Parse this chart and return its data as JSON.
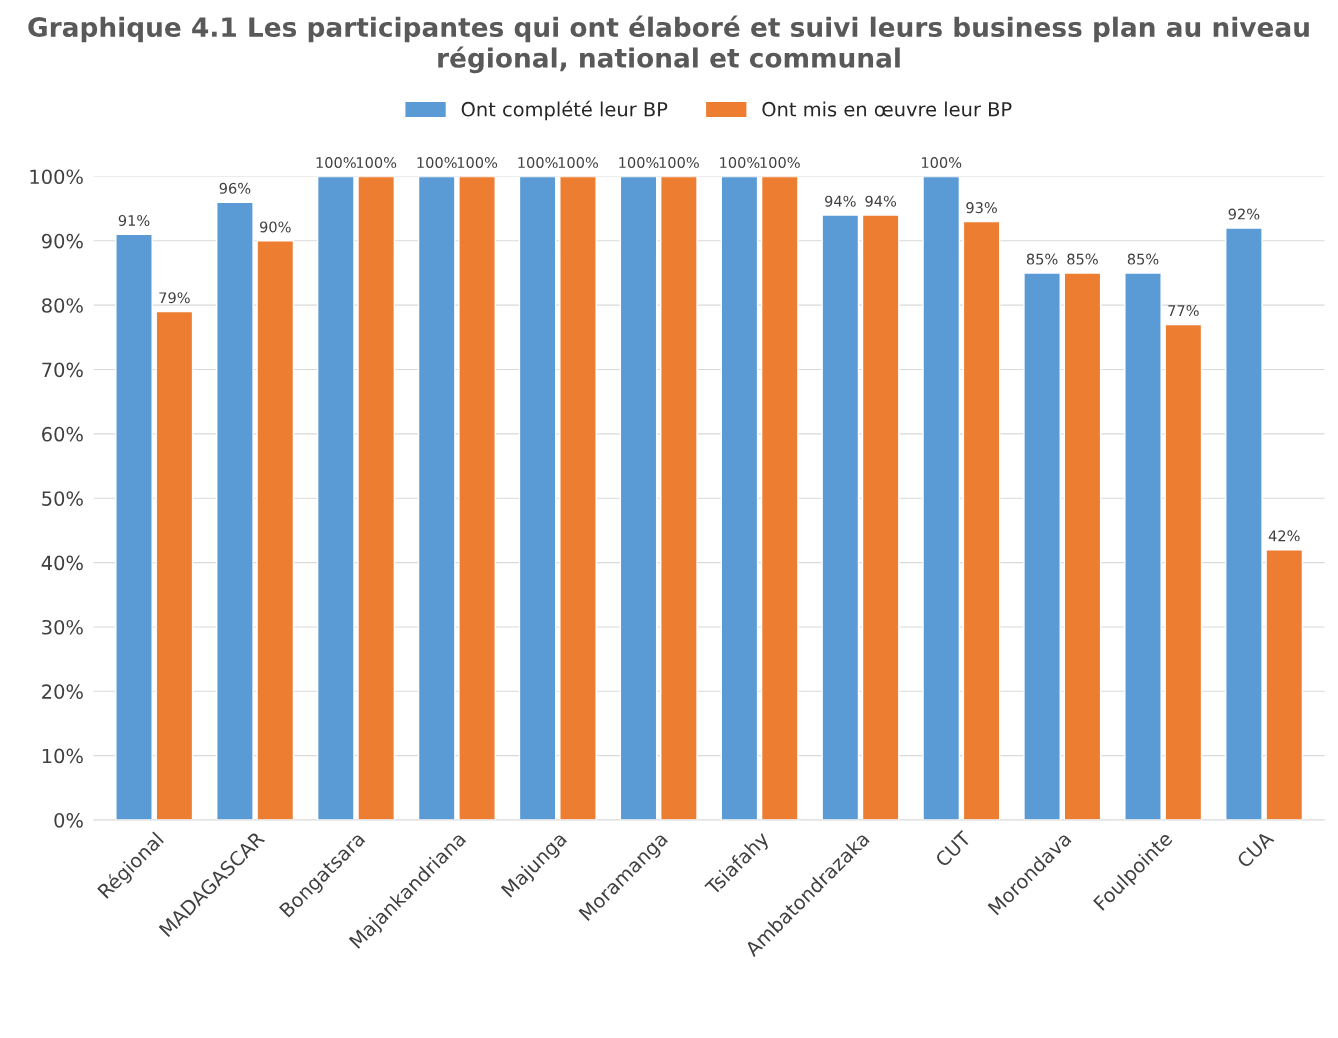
{
  "chart_data": {
    "type": "bar",
    "title": "Graphique 4.1 Les participantes qui ont élaboré et suivi leurs business plan au niveau régional, national et communal",
    "categories": [
      "Régional",
      "MADAGASCAR",
      "Bongatsara",
      "Majankandriana",
      "Majunga",
      "Moramanga",
      "Tsiafahy",
      "Ambatondrazaka",
      "CUT",
      "Morondava",
      "Foulpointe",
      "CUA"
    ],
    "series": [
      {
        "name": "Ont complété leur BP",
        "color": "#5b9bd5",
        "values": [
          91,
          96,
          100,
          100,
          100,
          100,
          100,
          94,
          100,
          85,
          85,
          92
        ],
        "value_labels": [
          "91%",
          "96%",
          "100%",
          "100%",
          "100%",
          "100%",
          "100%",
          "94%",
          "100%",
          "85%",
          "85%",
          "92%"
        ]
      },
      {
        "name": "Ont mis en œuvre leur BP",
        "color": "#ed7d31",
        "values": [
          79,
          90,
          100,
          100,
          100,
          100,
          100,
          94,
          93,
          85,
          77,
          42
        ],
        "value_labels": [
          "79%",
          "90%",
          "100%",
          "100%",
          "100%",
          "100%",
          "100%",
          "94%",
          "93%",
          "85%",
          "77%",
          "42%"
        ]
      }
    ],
    "ylim": [
      0,
      100
    ],
    "yticks": [
      {
        "value": 0,
        "label": "0%"
      },
      {
        "value": 10,
        "label": "10%"
      },
      {
        "value": 20,
        "label": "20%"
      },
      {
        "value": 30,
        "label": "30%"
      },
      {
        "value": 40,
        "label": "40%"
      },
      {
        "value": 50,
        "label": "50%"
      },
      {
        "value": 60,
        "label": "60%"
      },
      {
        "value": 70,
        "label": "70%"
      },
      {
        "value": 80,
        "label": "80%"
      },
      {
        "value": 90,
        "label": "90%"
      },
      {
        "value": 100,
        "label": "100%"
      }
    ],
    "grid": "y",
    "legend": "top"
  }
}
